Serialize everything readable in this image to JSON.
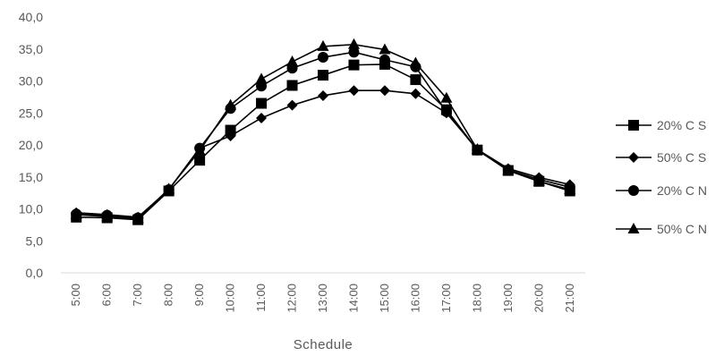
{
  "chart_data": {
    "type": "line",
    "title": "",
    "xlabel": "Schedule",
    "ylabel": "",
    "ylim": [
      0,
      40
    ],
    "yticks": [
      "0,0",
      "5,0",
      "10,0",
      "15,0",
      "20,0",
      "25,0",
      "30,0",
      "35,0",
      "40,0"
    ],
    "categories": [
      "5:00",
      "6:00",
      "7:00",
      "8:00",
      "9:00",
      "10:00",
      "11:00",
      "12:00",
      "13:00",
      "14:00",
      "15:00",
      "16:00",
      "17:00",
      "18:00",
      "19:00",
      "20:00",
      "21:00"
    ],
    "grid": false,
    "legend_position": "right",
    "series": [
      {
        "name": "20% C S",
        "marker": "square",
        "values": [
          8.7,
          8.6,
          8.3,
          12.8,
          17.6,
          22.3,
          26.5,
          29.3,
          30.9,
          32.5,
          32.6,
          30.2,
          25.5,
          19.2,
          16.0,
          14.3,
          12.8
        ]
      },
      {
        "name": "50% C S",
        "marker": "diamond",
        "values": [
          9.4,
          9.1,
          8.7,
          13.0,
          19.5,
          21.4,
          24.2,
          26.2,
          27.7,
          28.5,
          28.5,
          28.0,
          25.0,
          19.3,
          16.3,
          14.9,
          13.8
        ]
      },
      {
        "name": "20% C N",
        "marker": "circle",
        "values": [
          9.2,
          9.0,
          8.6,
          13.0,
          19.5,
          25.7,
          29.2,
          32.0,
          33.7,
          34.5,
          33.3,
          32.2,
          25.2,
          19.2,
          16.1,
          14.6,
          13.4
        ]
      },
      {
        "name": "50% C N",
        "marker": "triangle",
        "values": [
          9.1,
          8.8,
          8.5,
          13.1,
          19.1,
          26.2,
          30.3,
          33.0,
          35.4,
          35.7,
          34.9,
          32.8,
          27.3,
          19.3,
          16.0,
          14.3,
          13.0
        ]
      }
    ]
  }
}
